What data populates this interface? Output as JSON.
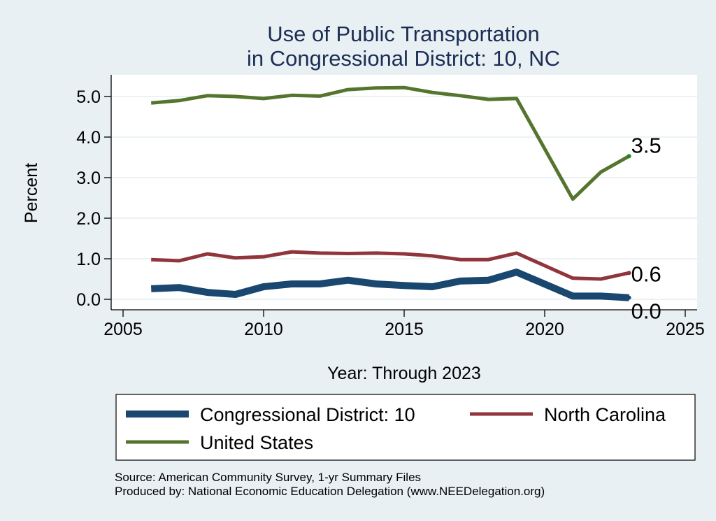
{
  "chart_data": {
    "type": "line",
    "title": [
      "Use of Public Transportation",
      "in Congressional District: 10, NC"
    ],
    "xlabel": "Year: Through 2023",
    "ylabel": "Percent",
    "xlim": [
      2005,
      2025
    ],
    "ylim": [
      0,
      5
    ],
    "xticks": [
      2005,
      2010,
      2015,
      2020,
      2025
    ],
    "xtick_labels": [
      "2005",
      "2010",
      "2015",
      "2020",
      "2025"
    ],
    "yticks": [
      0,
      1,
      2,
      3,
      4,
      5
    ],
    "ytick_labels": [
      "0.0",
      "1.0",
      "2.0",
      "3.0",
      "4.0",
      "5.0"
    ],
    "grid": true,
    "legend_position": "bottom",
    "series": [
      {
        "name": "Congressional District: 10",
        "color": "#1a476f",
        "x": [
          2006,
          2007,
          2008,
          2009,
          2010,
          2011,
          2012,
          2013,
          2014,
          2015,
          2016,
          2017,
          2018,
          2019,
          2021,
          2022,
          2023
        ],
        "values": [
          0.26,
          0.29,
          0.17,
          0.12,
          0.31,
          0.38,
          0.38,
          0.47,
          0.38,
          0.34,
          0.31,
          0.45,
          0.47,
          0.67,
          0.08,
          0.08,
          0.04
        ],
        "end_label": "0.0"
      },
      {
        "name": "North Carolina",
        "color": "#90353b",
        "x": [
          2006,
          2007,
          2008,
          2009,
          2010,
          2011,
          2012,
          2013,
          2014,
          2015,
          2016,
          2017,
          2018,
          2019,
          2021,
          2022,
          2023
        ],
        "values": [
          0.98,
          0.95,
          1.12,
          1.02,
          1.05,
          1.17,
          1.14,
          1.13,
          1.14,
          1.12,
          1.07,
          0.98,
          0.98,
          1.14,
          0.52,
          0.5,
          0.65
        ],
        "end_label": "0.6"
      },
      {
        "name": "United States",
        "color": "#55752f",
        "x": [
          2006,
          2007,
          2008,
          2009,
          2010,
          2011,
          2012,
          2013,
          2014,
          2015,
          2016,
          2017,
          2018,
          2019,
          2021,
          2022,
          2023
        ],
        "values": [
          4.84,
          4.9,
          5.02,
          5.0,
          4.95,
          5.03,
          5.01,
          5.17,
          5.21,
          5.22,
          5.1,
          5.02,
          4.93,
          4.95,
          2.47,
          3.14,
          3.53
        ],
        "end_label": "3.5"
      }
    ],
    "notes": [
      "Source: American Community Survey, 1-yr Summary Files",
      "Produced by: National Economic Education Delegation (www.NEEDelegation.org)"
    ]
  }
}
